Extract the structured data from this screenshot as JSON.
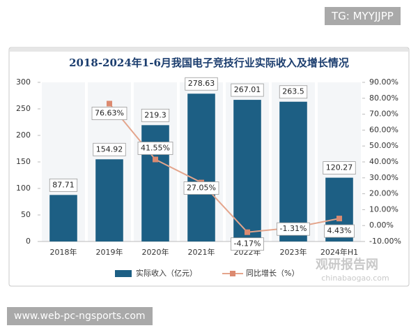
{
  "tag": "TG: MYYJJPP",
  "footer_url": "www.web-pc-ngsports.com",
  "watermark": {
    "brand": "观研报告网",
    "site": "chinabaogao.com"
  },
  "chart_data": {
    "type": "bar",
    "title": "2018-2024年1-6月我国电子竞技行业实际收入及增长情况",
    "categories": [
      "2018年",
      "2019年",
      "2020年",
      "2021年",
      "2022年",
      "2023年",
      "2024年H1"
    ],
    "series": [
      {
        "name": "实际收入（亿元）",
        "type": "bar",
        "color": "#1d5f84",
        "values": [
          87.71,
          154.92,
          219.3,
          278.63,
          267.01,
          263.5,
          120.27
        ]
      },
      {
        "name": "同比增长（%）",
        "type": "line",
        "axis": "y2",
        "color": "#e4a58c",
        "values": [
          null,
          76.63,
          41.55,
          27.05,
          -4.17,
          -1.31,
          4.43
        ],
        "value_labels": [
          null,
          "76.63%",
          "41.55%",
          "27.05%",
          "-4.17%",
          "-1.31%",
          "4.43%"
        ]
      }
    ],
    "ylim": [
      0,
      300
    ],
    "yticks": [
      0,
      50,
      100,
      150,
      200,
      250,
      300
    ],
    "y2lim": [
      -10,
      90
    ],
    "y2ticks": [
      {
        "value": -10,
        "label": "-10.00%"
      },
      {
        "value": 0,
        "label": "0.00%"
      },
      {
        "value": 10,
        "label": "10.00%"
      },
      {
        "value": 20,
        "label": "20.00%"
      },
      {
        "value": 30,
        "label": "30.00%"
      },
      {
        "value": 40,
        "label": "40.00%"
      },
      {
        "value": 50,
        "label": "50.00%"
      },
      {
        "value": 60,
        "label": "60.00%"
      },
      {
        "value": 70,
        "label": "70.00%"
      },
      {
        "value": 80,
        "label": "80.00%"
      },
      {
        "value": 90,
        "label": "90.00%"
      }
    ],
    "legend": "bottom"
  }
}
